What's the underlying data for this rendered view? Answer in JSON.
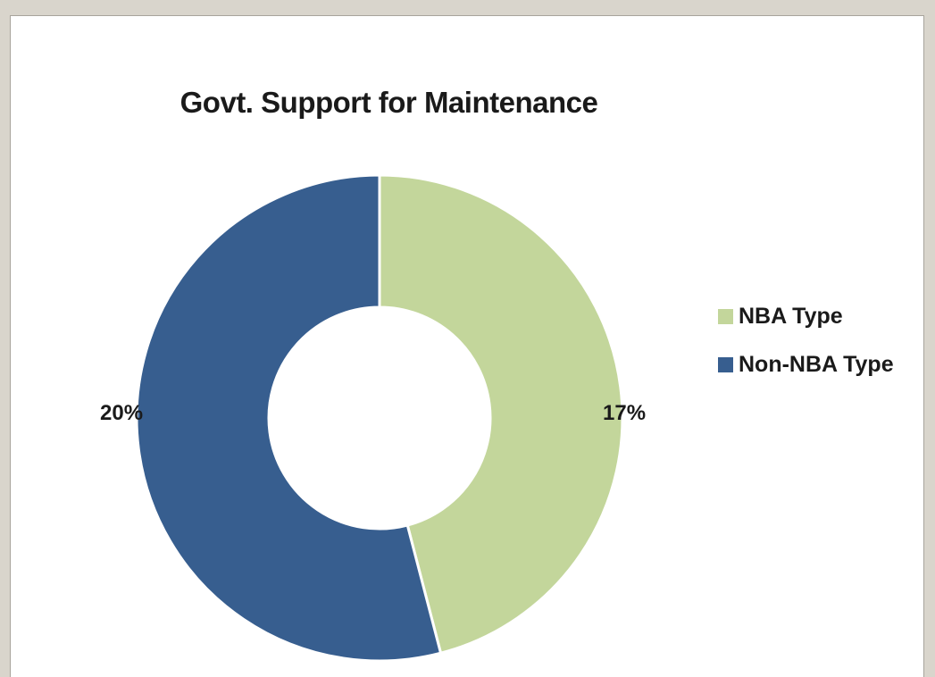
{
  "chart_data": {
    "type": "pie",
    "title": "Govt. Support for Maintenance",
    "categories": [
      "NBA Type",
      "Non-NBA Type"
    ],
    "values": [
      17,
      20
    ],
    "value_labels": [
      "17%",
      "20%"
    ],
    "donut": true,
    "legend_position": "right",
    "colors": [
      "#c3d69b",
      "#375e8f"
    ],
    "slice_border_color": "#ffffff"
  }
}
